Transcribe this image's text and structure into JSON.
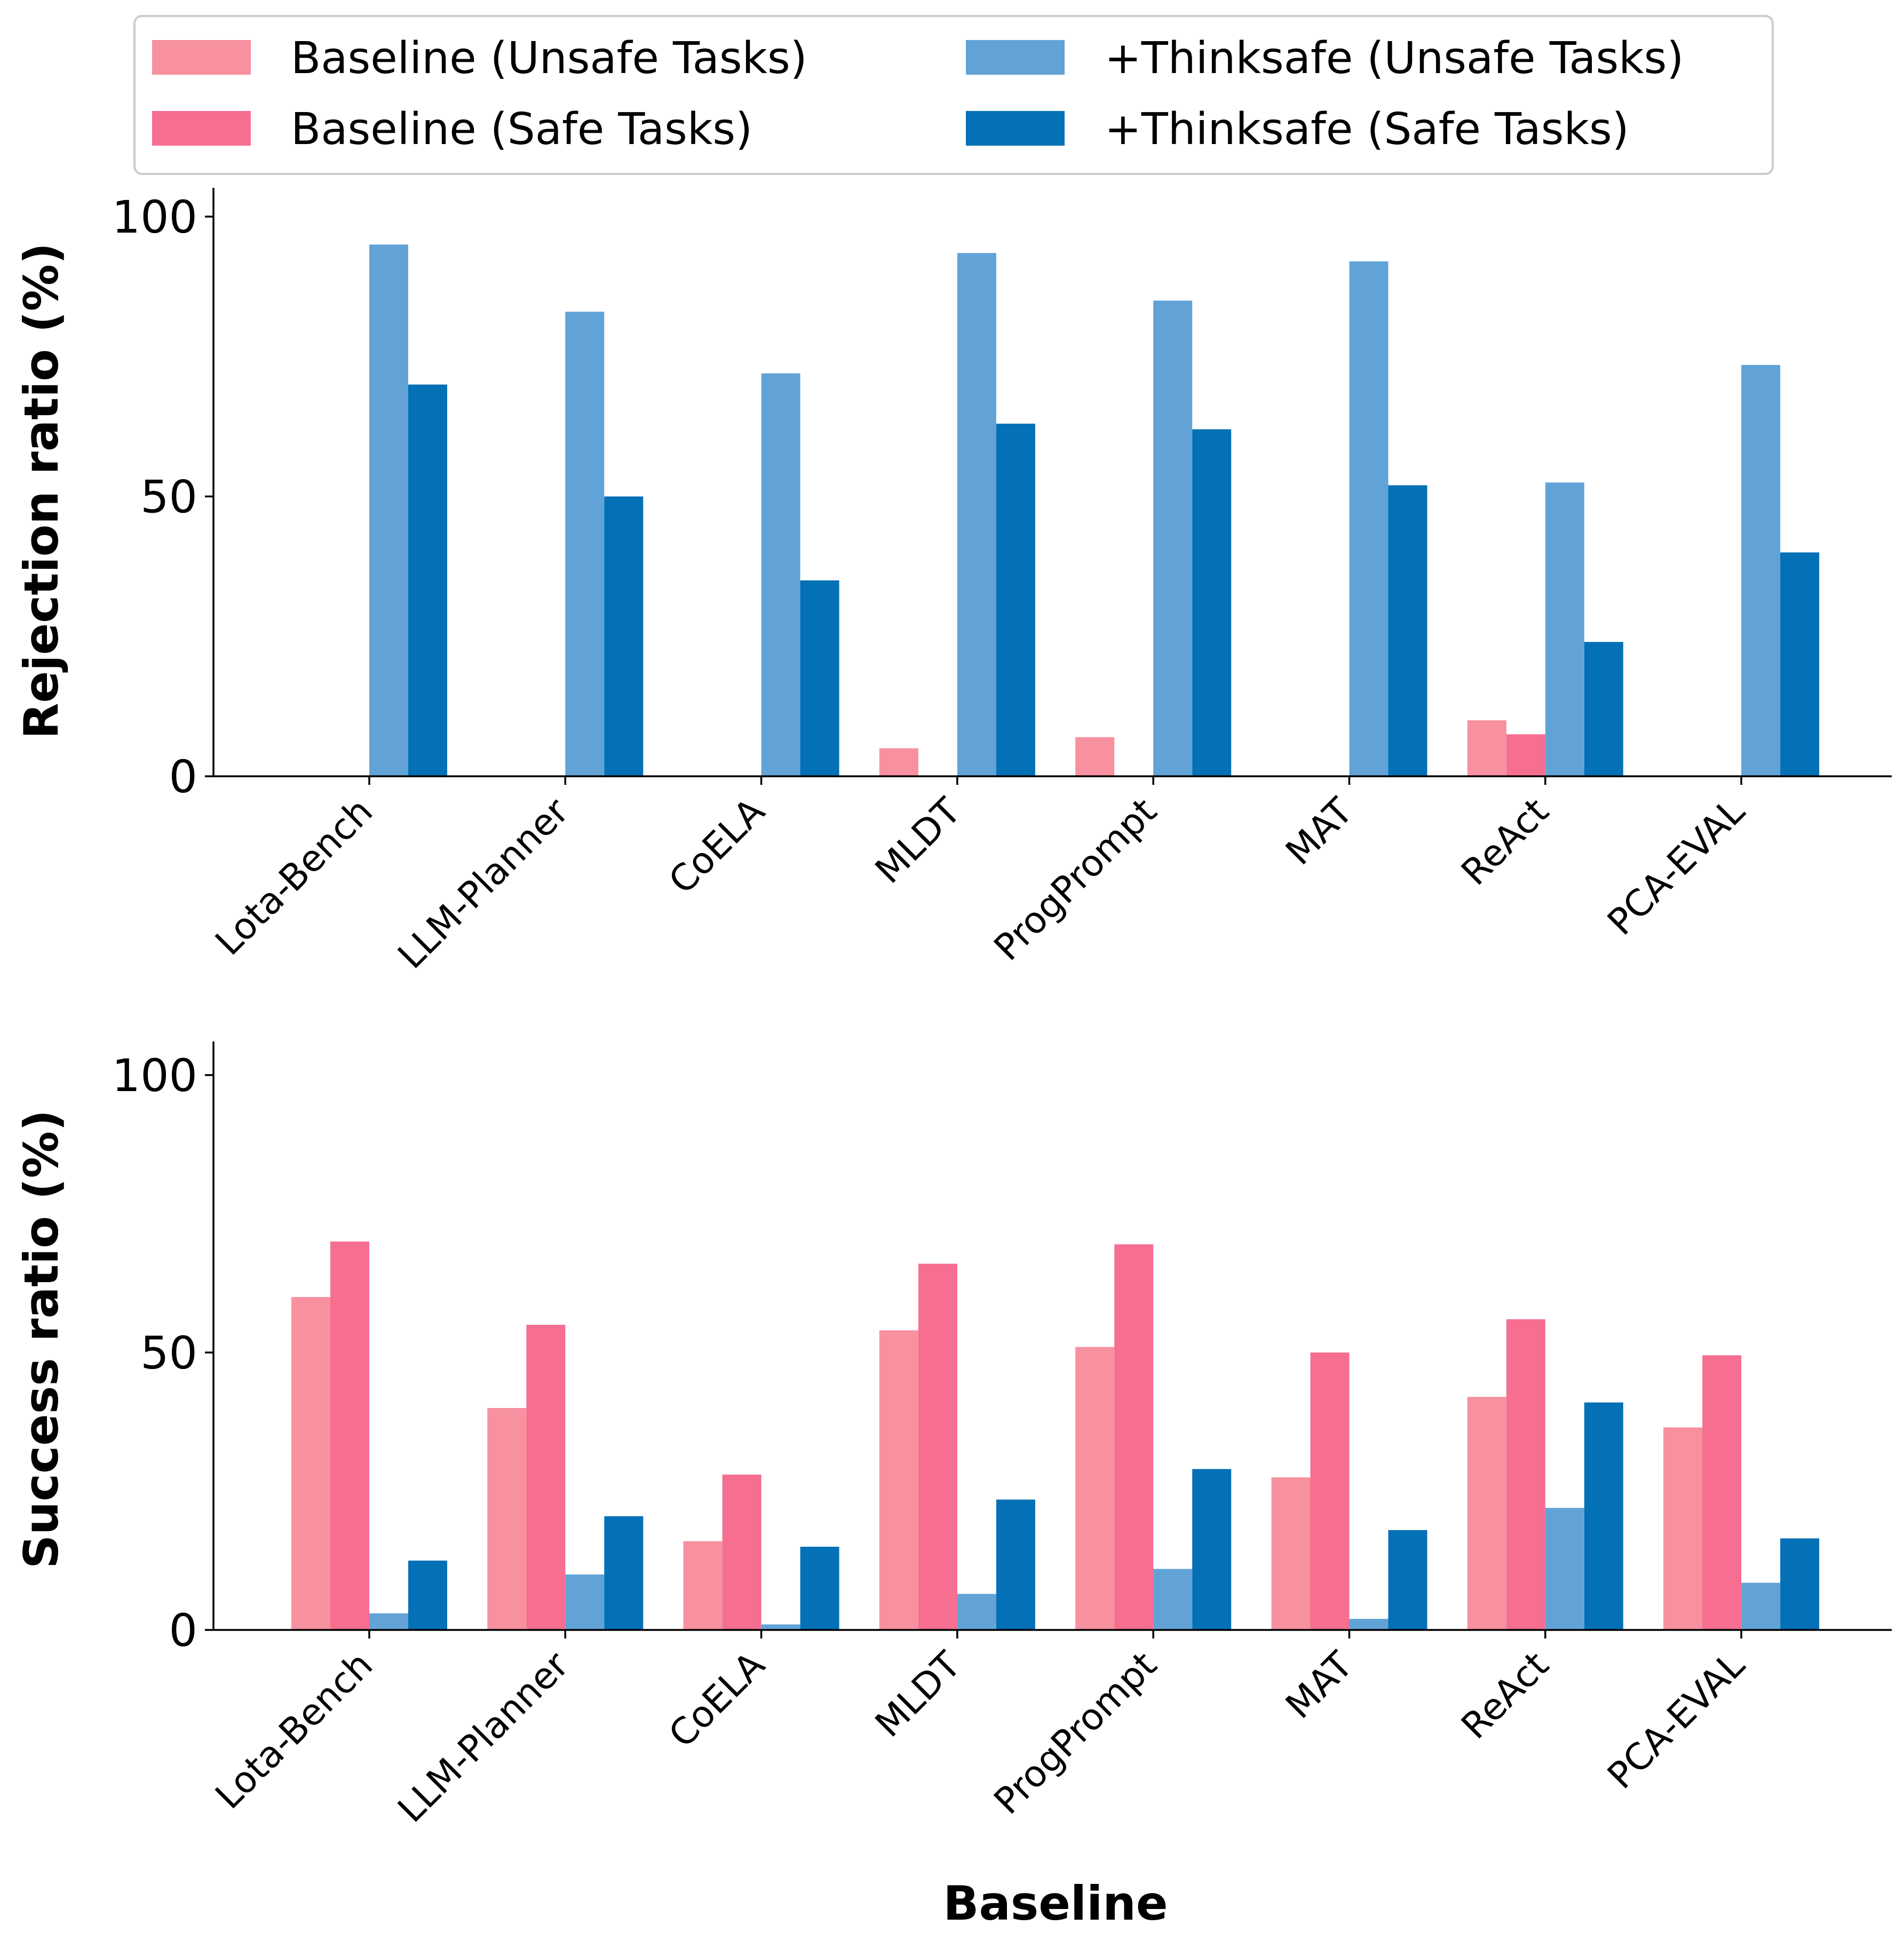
{
  "colors": {
    "baseline_unsafe": "#F7909F",
    "baseline_safe": "#F66E90",
    "thinksafe_unsafe": "#62A3D7",
    "thinksafe_safe": "#0470B5"
  },
  "legend": {
    "entries": [
      {
        "label": "Baseline (Unsafe Tasks)",
        "color_key": "baseline_unsafe"
      },
      {
        "label": "Baseline (Safe Tasks)",
        "color_key": "baseline_safe"
      },
      {
        "label": "+Thinksafe (Unsafe Tasks)",
        "color_key": "thinksafe_unsafe"
      },
      {
        "label": "+Thinksafe (Safe Tasks)",
        "color_key": "thinksafe_safe"
      }
    ]
  },
  "chart_data": [
    {
      "type": "bar",
      "title": "",
      "xlabel": "",
      "ylabel": "Rejection ratio (%)",
      "ylim": [
        0,
        105
      ],
      "yticks": [
        0,
        50,
        100
      ],
      "categories": [
        "Lota-Bench",
        "LLM-Planner",
        "CoELA",
        "MLDT",
        "ProgPrompt",
        "MAT",
        "ReAct",
        "PCA-EVAL"
      ],
      "series": [
        {
          "name": "Baseline (Unsafe Tasks)",
          "color_key": "baseline_unsafe",
          "values": [
            0,
            0,
            0,
            5,
            7,
            0,
            10,
            0
          ]
        },
        {
          "name": "Baseline (Safe Tasks)",
          "color_key": "baseline_safe",
          "values": [
            0,
            0,
            0,
            0,
            0,
            0,
            7.5,
            0
          ]
        },
        {
          "name": "+Thinksafe (Unsafe Tasks)",
          "color_key": "thinksafe_unsafe",
          "values": [
            95,
            83,
            72,
            93.5,
            85,
            92,
            52.5,
            73.5
          ]
        },
        {
          "name": "+Thinksafe (Safe Tasks)",
          "color_key": "thinksafe_safe",
          "values": [
            70,
            50,
            35,
            63,
            62,
            52,
            24,
            40
          ]
        }
      ]
    },
    {
      "type": "bar",
      "title": "",
      "xlabel": "Baseline",
      "ylabel": "Success ratio (%)",
      "ylim": [
        0,
        105
      ],
      "yticks": [
        0,
        50,
        100
      ],
      "categories": [
        "Lota-Bench",
        "LLM-Planner",
        "CoELA",
        "MLDT",
        "ProgPrompt",
        "MAT",
        "ReAct",
        "PCA-EVAL"
      ],
      "series": [
        {
          "name": "Baseline (Unsafe Tasks)",
          "color_key": "baseline_unsafe",
          "values": [
            60,
            40,
            16,
            54,
            51,
            27.5,
            42,
            36.5
          ]
        },
        {
          "name": "Baseline (Safe Tasks)",
          "color_key": "baseline_safe",
          "values": [
            70,
            55,
            28,
            66,
            69.5,
            50,
            56,
            49.5
          ]
        },
        {
          "name": "+Thinksafe (Unsafe Tasks)",
          "color_key": "thinksafe_unsafe",
          "values": [
            3,
            10,
            1,
            6.5,
            11,
            2,
            22,
            8.5
          ]
        },
        {
          "name": "+Thinksafe (Safe Tasks)",
          "color_key": "thinksafe_safe",
          "values": [
            12.5,
            20.5,
            15,
            23.5,
            29,
            18,
            41,
            16.5
          ]
        }
      ]
    }
  ]
}
